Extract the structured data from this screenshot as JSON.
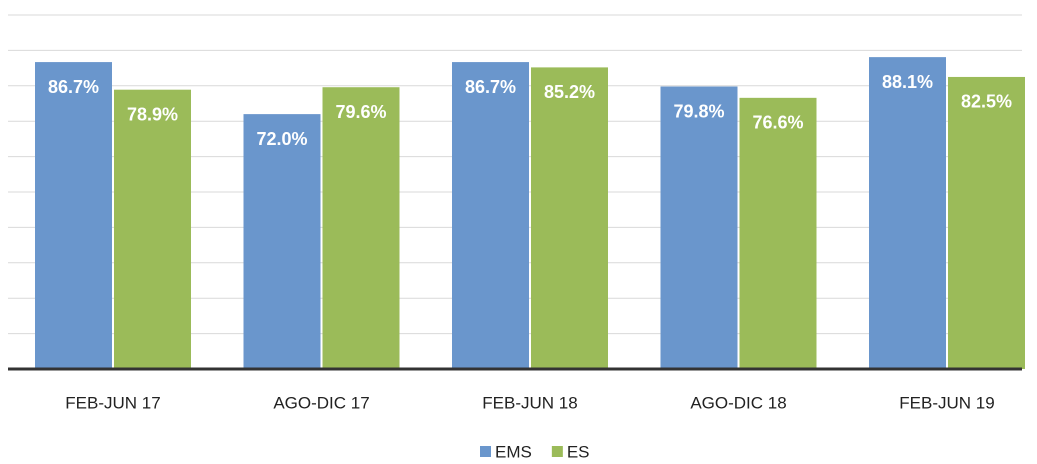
{
  "chart_data": {
    "type": "bar",
    "categories": [
      "FEB-JUN 17",
      "AGO-DIC 17",
      "FEB-JUN 18",
      "AGO-DIC 18",
      "FEB-JUN 19"
    ],
    "series": [
      {
        "name": "EMS",
        "color": "#6a96cc",
        "values": [
          86.7,
          72.0,
          86.7,
          79.8,
          88.1
        ],
        "value_labels": [
          "86.7%",
          "72.0%",
          "86.7%",
          "79.8%",
          "88.1%"
        ]
      },
      {
        "name": "ES",
        "color": "#9bbb59",
        "values": [
          78.9,
          79.6,
          85.2,
          76.6,
          82.5
        ],
        "value_labels": [
          "78.9%",
          "79.6%",
          "85.2%",
          "76.6%",
          "82.5%"
        ]
      }
    ],
    "ylim": [
      0,
      100
    ],
    "yticks": [
      0,
      10,
      20,
      30,
      40,
      50,
      60,
      70,
      80,
      90,
      100
    ],
    "grid": true,
    "legend": "bottom"
  }
}
